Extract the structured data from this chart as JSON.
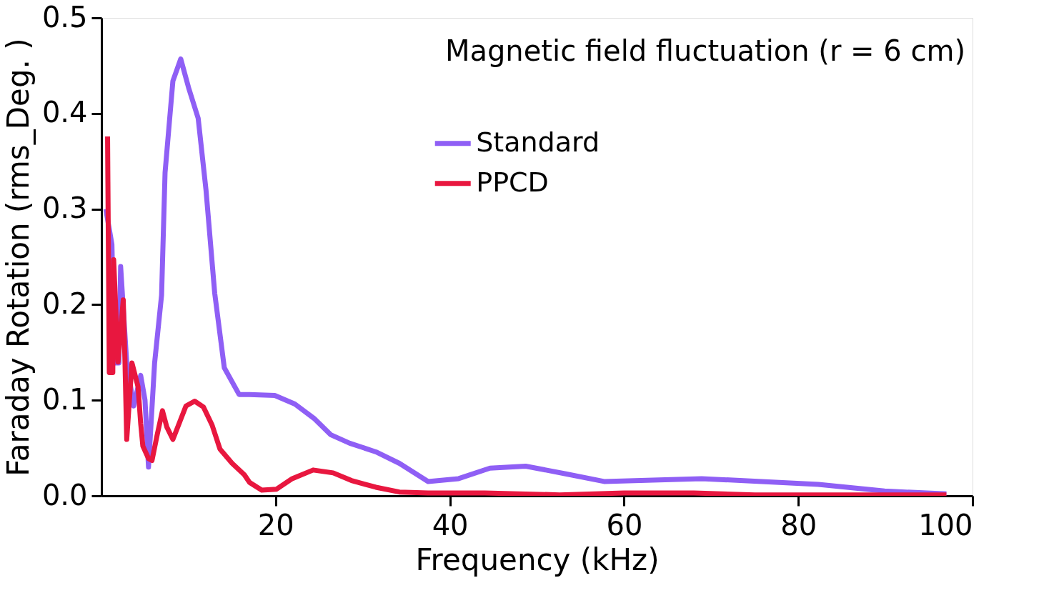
{
  "chart_data": {
    "type": "line",
    "annotations": [
      "Magnetic field fluctuation  (r = 6 cm)"
    ],
    "xlabel": "Frequency (kHz)",
    "ylabel": "Faraday Rotation (rms_Deg. )",
    "xlim": [
      0,
      100
    ],
    "xticks": [
      20,
      40,
      60,
      80,
      100
    ],
    "ylim": [
      0,
      0.5
    ],
    "yticks": [
      {
        "value": 0,
        "label": "0.0"
      },
      0.1,
      0.2,
      0.3,
      0.4,
      0.5
    ],
    "grid": false,
    "legend": "top",
    "line_style": "solid",
    "marker": "none",
    "series": [
      {
        "name": "Standard",
        "color": "#8f5ff5",
        "x": [
          0.5,
          1.2,
          1.5,
          2.0,
          2.2,
          2.9,
          3.7,
          4.5,
          5.0,
          5.4,
          6.1,
          6.9,
          7.3,
          8.2,
          9.1,
          10.0,
          11.1,
          12.0,
          13.0,
          14.1,
          15.8,
          17.0,
          19.9,
          22.2,
          24.4,
          26.3,
          28.5,
          31.5,
          34.2,
          37.5,
          41.0,
          44.6,
          48.7,
          53.3,
          57.7,
          68.9,
          82.3,
          89.9,
          97.0
        ],
        "values": [
          0.3,
          0.263,
          0.139,
          0.139,
          0.24,
          0.139,
          0.094,
          0.126,
          0.1,
          0.03,
          0.139,
          0.21,
          0.338,
          0.434,
          0.457,
          0.427,
          0.395,
          0.32,
          0.212,
          0.134,
          0.106,
          0.106,
          0.105,
          0.096,
          0.081,
          0.064,
          0.055,
          0.046,
          0.034,
          0.015,
          0.018,
          0.029,
          0.031,
          0.023,
          0.015,
          0.018,
          0.012,
          0.005,
          0.002
        ]
      },
      {
        "name": " PPCD",
        "color": "#e8173f",
        "x": [
          0.7,
          0.9,
          1.3,
          1.4,
          1.9,
          2.5,
          2.7,
          2.9,
          3.5,
          4.2,
          4.5,
          4.75,
          5.4,
          5.8,
          6.4,
          7.0,
          7.5,
          8.2,
          9.7,
          10.7,
          11.7,
          12.7,
          13.6,
          15.0,
          16.4,
          17.0,
          18.4,
          20.1,
          21.9,
          24.3,
          26.6,
          28.7,
          31.5,
          34.2,
          37.5,
          44.0,
          52.6,
          60.0,
          68.0,
          75.0,
          85.0,
          97.0
        ],
        "values": [
          0.376,
          0.129,
          0.129,
          0.247,
          0.14,
          0.205,
          0.14,
          0.059,
          0.139,
          0.114,
          0.076,
          0.052,
          0.039,
          0.037,
          0.064,
          0.089,
          0.072,
          0.059,
          0.094,
          0.099,
          0.093,
          0.074,
          0.049,
          0.034,
          0.022,
          0.014,
          0.006,
          0.007,
          0.018,
          0.027,
          0.024,
          0.016,
          0.009,
          0.004,
          0.003,
          0.003,
          0.001,
          0.003,
          0.003,
          0.001,
          0.001,
          0.001
        ]
      }
    ]
  }
}
